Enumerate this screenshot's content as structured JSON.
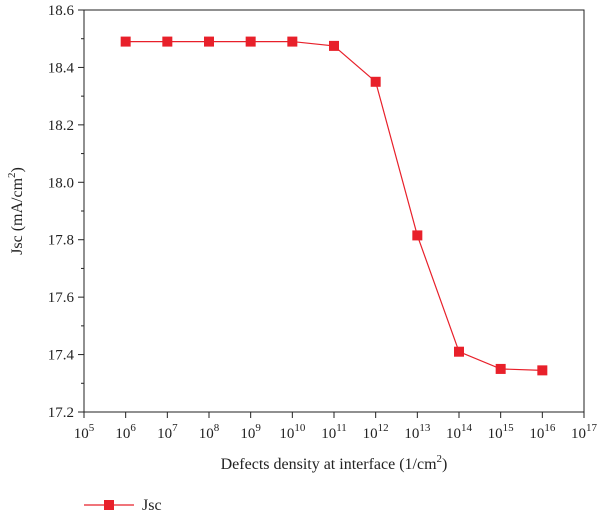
{
  "chart_data": {
    "type": "line",
    "x_scale": "log",
    "x_tick_exponents": [
      5,
      6,
      7,
      8,
      9,
      10,
      11,
      12,
      13,
      14,
      15,
      16,
      17
    ],
    "x_tick_base": "10",
    "xlim": [
      100000,
      100000000000000000
    ],
    "ylim": [
      17.2,
      18.6
    ],
    "y_ticks": [
      "17.2",
      "17.4",
      "17.6",
      "17.8",
      "18.0",
      "18.2",
      "18.4",
      "18.6"
    ],
    "xlabel_parts": [
      "Defects density at interface (1/cm",
      "2",
      ")"
    ],
    "ylabel_parts": [
      "Jsc (mA/cm",
      "2",
      ")"
    ],
    "grid": false,
    "legend_position": "bottom-left",
    "series": [
      {
        "name": "Jsc",
        "color": "#e8202a",
        "marker": "square",
        "x": [
          1000000,
          10000000,
          100000000,
          1000000000,
          10000000000,
          100000000000,
          1000000000000,
          10000000000000,
          100000000000000,
          1000000000000000,
          10000000000000000
        ],
        "y": [
          18.49,
          18.49,
          18.49,
          18.49,
          18.49,
          18.475,
          18.35,
          17.815,
          17.41,
          17.35,
          17.345
        ]
      }
    ]
  }
}
